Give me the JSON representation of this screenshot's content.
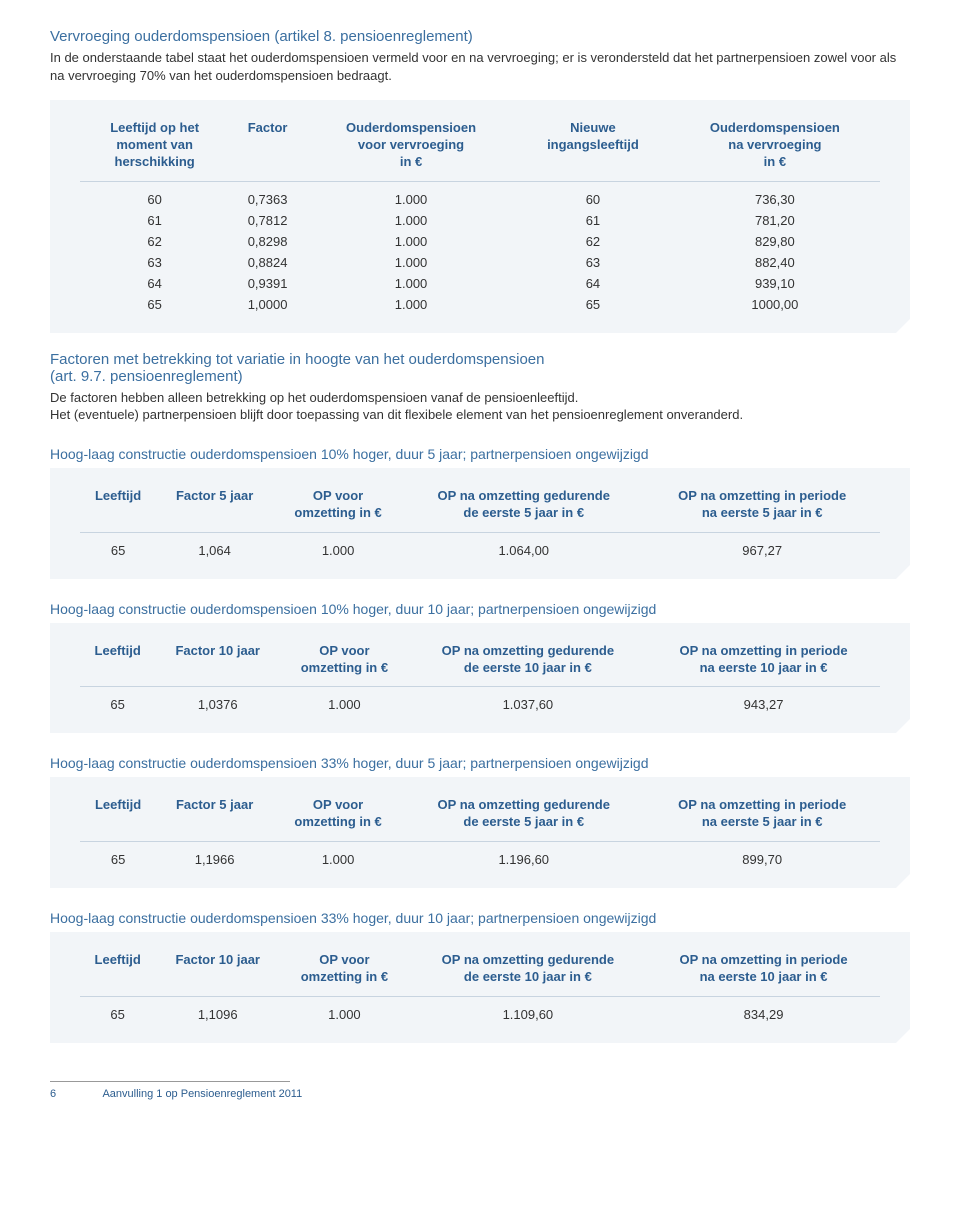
{
  "section1": {
    "heading": "Vervroeging ouderdomspensioen (artikel 8. pensioenreglement)",
    "intro": "In de onderstaande tabel staat het ouderdomspensioen vermeld voor en na vervroeging; er is verondersteld dat het partnerpensioen zowel voor als na vervroeging 70% van het ouderdomspensioen bedraagt.",
    "table": {
      "headers": [
        "Leeftijd op het\nmoment van\nherschikking",
        "Factor",
        "Ouderdomspensioen\nvoor vervroeging\nin €",
        "Nieuwe\ningangsleeftijd",
        "Ouderdomspensioen\nna vervroeging\nin €"
      ],
      "rows": [
        [
          "60",
          "0,7363",
          "1.000",
          "60",
          "736,30"
        ],
        [
          "61",
          "0,7812",
          "1.000",
          "61",
          "781,20"
        ],
        [
          "62",
          "0,8298",
          "1.000",
          "62",
          "829,80"
        ],
        [
          "63",
          "0,8824",
          "1.000",
          "63",
          "882,40"
        ],
        [
          "64",
          "0,9391",
          "1.000",
          "64",
          "939,10"
        ],
        [
          "65",
          "1,0000",
          "1.000",
          "65",
          "1000,00"
        ]
      ]
    }
  },
  "section2": {
    "heading": "Factoren met betrekking tot variatie in hoogte van het ouderdomspensioen\n(art. 9.7. pensioenreglement)",
    "intro1": "De factoren hebben alleen betrekking op het ouderdomspensioen vanaf de pensioenleeftijd.",
    "intro2": "Het (eventuele) partnerpensioen blijft door toepassing van dit flexibele element van het pensioenreglement onveranderd."
  },
  "tables": [
    {
      "title": "Hoog-laag constructie ouderdomspensioen 10% hoger, duur 5 jaar; partnerpensioen ongewijzigd",
      "headers": [
        "Leeftijd",
        "Factor 5 jaar",
        "OP voor\nomzetting in €",
        "OP na omzetting gedurende\nde eerste 5 jaar in €",
        "OP na omzetting in periode\nna eerste 5 jaar in €"
      ],
      "row": [
        "65",
        "1,064",
        "1.000",
        "1.064,00",
        "967,27"
      ]
    },
    {
      "title": "Hoog-laag constructie ouderdomspensioen 10% hoger, duur 10 jaar; partnerpensioen ongewijzigd",
      "headers": [
        "Leeftijd",
        "Factor 10 jaar",
        "OP voor\nomzetting in €",
        "OP na omzetting gedurende\nde eerste 10 jaar in €",
        "OP na omzetting in periode\nna eerste 10 jaar in €"
      ],
      "row": [
        "65",
        "1,0376",
        "1.000",
        "1.037,60",
        "943,27"
      ]
    },
    {
      "title": "Hoog-laag constructie ouderdomspensioen 33% hoger, duur 5 jaar; partnerpensioen ongewijzigd",
      "headers": [
        "Leeftijd",
        "Factor 5 jaar",
        "OP voor\nomzetting in €",
        "OP na omzetting gedurende\nde eerste 5 jaar in €",
        "OP na omzetting in periode\nna eerste 5 jaar in €"
      ],
      "row": [
        "65",
        "1,1966",
        "1.000",
        "1.196,60",
        "899,70"
      ]
    },
    {
      "title": "Hoog-laag constructie ouderdomspensioen 33% hoger, duur 10 jaar; partnerpensioen ongewijzigd",
      "headers": [
        "Leeftijd",
        "Factor 10 jaar",
        "OP voor\nomzetting in €",
        "OP na omzetting gedurende\nde eerste 10 jaar in €",
        "OP na omzetting in periode\nna eerste 10 jaar in €"
      ],
      "row": [
        "65",
        "1,1096",
        "1.000",
        "1.109,60",
        "834,29"
      ]
    }
  ],
  "footer": {
    "page": "6",
    "text": "Aanvulling 1 op Pensioenreglement 2011"
  }
}
